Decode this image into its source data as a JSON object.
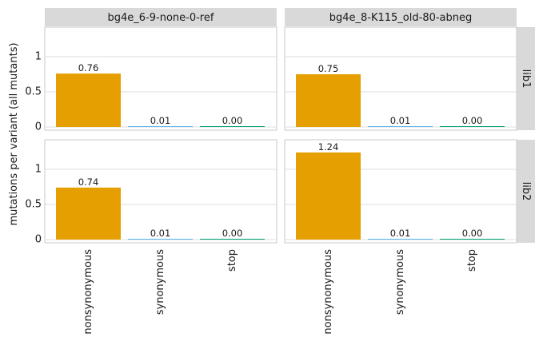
{
  "chart_data": {
    "type": "bar",
    "ylabel": "mutations per variant (all mutants)",
    "ylim": [
      0,
      1.45
    ],
    "yticks": [
      0,
      0.5,
      1
    ],
    "ytick_labels": [
      "0",
      "0.5",
      "1"
    ],
    "categories": [
      "nonsynonymous",
      "synonymous",
      "stop"
    ],
    "columns": [
      "bg4e_6-9-none-0-ref",
      "bg4e_8-K115_old-80-abneg"
    ],
    "rows": [
      "lib1",
      "lib2"
    ],
    "colors": {
      "nonsynonymous": "#E69F00",
      "synonymous": "#56B4E9",
      "stop": "#009E73"
    },
    "grid": true,
    "panels": [
      {
        "column": "bg4e_6-9-none-0-ref",
        "row": "lib1",
        "values": [
          0.76,
          0.01,
          0.0
        ],
        "labels": [
          "0.76",
          "0.01",
          "0.00"
        ]
      },
      {
        "column": "bg4e_8-K115_old-80-abneg",
        "row": "lib1",
        "values": [
          0.75,
          0.01,
          0.0
        ],
        "labels": [
          "0.75",
          "0.01",
          "0.00"
        ]
      },
      {
        "column": "bg4e_6-9-none-0-ref",
        "row": "lib2",
        "values": [
          0.74,
          0.01,
          0.0
        ],
        "labels": [
          "0.74",
          "0.01",
          "0.00"
        ]
      },
      {
        "column": "bg4e_8-K115_old-80-abneg",
        "row": "lib2",
        "values": [
          1.24,
          0.01,
          0.0
        ],
        "labels": [
          "1.24",
          "0.01",
          "0.00"
        ]
      }
    ]
  }
}
